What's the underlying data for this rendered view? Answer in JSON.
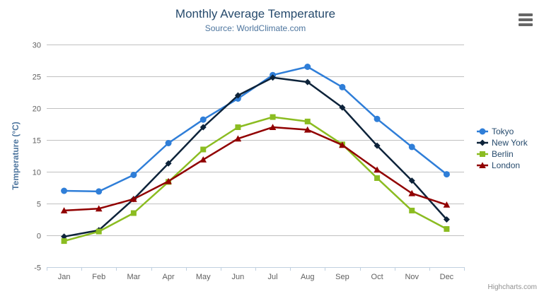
{
  "header": {
    "title": "Monthly Average Temperature",
    "subtitle": "Source: WorldClimate.com"
  },
  "export_menu": {
    "icon": "hamburger-menu-icon"
  },
  "credit": {
    "label": "Highcharts.com"
  },
  "chart_data": {
    "type": "line",
    "title": "Monthly Average Temperature",
    "subtitle": "Source: WorldClimate.com",
    "categories": [
      "Jan",
      "Feb",
      "Mar",
      "Apr",
      "May",
      "Jun",
      "Jul",
      "Aug",
      "Sep",
      "Oct",
      "Nov",
      "Dec"
    ],
    "xlabel": "",
    "ylabel": "Temperature (°C)",
    "ylim": [
      -5,
      30
    ],
    "ytick_step": 5,
    "yticks": [
      -5,
      0,
      5,
      10,
      15,
      20,
      25,
      30
    ],
    "grid": true,
    "legend_position": "right",
    "series": [
      {
        "name": "Tokyo",
        "color": "#2f7ed8",
        "marker": "circle",
        "values": [
          7.0,
          6.9,
          9.5,
          14.5,
          18.2,
          21.5,
          25.2,
          26.5,
          23.3,
          18.3,
          13.9,
          9.6
        ]
      },
      {
        "name": "New York",
        "color": "#0d233a",
        "marker": "diamond",
        "values": [
          -0.2,
          0.8,
          5.7,
          11.3,
          17.0,
          22.0,
          24.8,
          24.1,
          20.1,
          14.1,
          8.6,
          2.5
        ]
      },
      {
        "name": "Berlin",
        "color": "#8bbc21",
        "marker": "square",
        "values": [
          -0.9,
          0.6,
          3.5,
          8.4,
          13.5,
          17.0,
          18.6,
          17.9,
          14.3,
          9.0,
          3.9,
          1.0
        ]
      },
      {
        "name": "London",
        "color": "#910000",
        "marker": "triangle",
        "values": [
          3.9,
          4.2,
          5.7,
          8.5,
          11.9,
          15.2,
          17.0,
          16.6,
          14.2,
          10.3,
          6.6,
          4.8
        ]
      }
    ]
  },
  "colors": {
    "background": "#ffffff",
    "title": "#274b6d",
    "subtitle": "#4d759e",
    "axis_title": "#4d759e",
    "tick_label": "#606060",
    "grid_line": "#c0c0c0",
    "axis_line": "#c0d0e0",
    "legend_text": "#274b6d",
    "credit": "#909090",
    "menu_icon": "#666666"
  }
}
